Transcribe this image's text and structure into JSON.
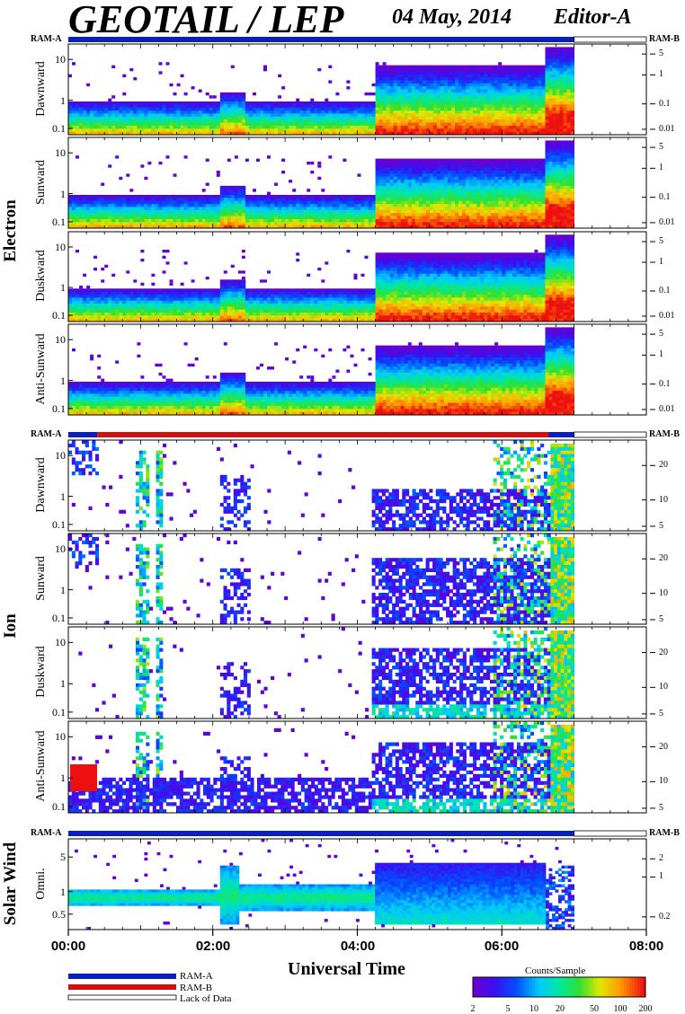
{
  "header": {
    "title": "GEOTAIL / LEP",
    "date": "04 May, 2014",
    "editor": "Editor-A"
  },
  "x_axis": {
    "label": "Universal Time",
    "ticks": [
      "00:00",
      "02:00",
      "04:00",
      "06:00",
      "08:00"
    ]
  },
  "legend": {
    "ram_a": "RAM-A",
    "ram_b": "RAM-B",
    "lack": "Lack of Data"
  },
  "colorbar": {
    "title": "Counts/Sample",
    "ticks": [
      "2",
      "5",
      "10",
      "20",
      "50",
      "100",
      "200"
    ]
  },
  "colors": {
    "ram_a": "#0a1fbf",
    "ram_b": "#d11111",
    "lack": "#ffffff"
  },
  "chart_data": {
    "type": "heatmap",
    "x_range_hours": [
      0,
      8
    ],
    "data_end_hour": 7.0,
    "color_scale": {
      "min": 2,
      "max": 200,
      "log": true
    },
    "groups": [
      {
        "name": "Electron",
        "ram_left": "RAM-A",
        "ram_right": "RAM-B",
        "ram_bar": [
          {
            "from": 0.0,
            "to": 7.0,
            "mode": "A"
          },
          {
            "from": 7.0,
            "to": 8.0,
            "mode": "none"
          }
        ],
        "left_ticks": [
          "10",
          "1",
          "0.1"
        ],
        "right_ticks": [
          "5",
          "1",
          "0.1",
          "0.01"
        ],
        "panels": [
          "Dawnward",
          "Sunward",
          "Duskward",
          "Anti-Sunward"
        ]
      },
      {
        "name": "Ion",
        "ram_left": "RAM-A",
        "ram_right": "RAM-B",
        "ram_bar": [
          {
            "from": 0.0,
            "to": 0.4,
            "mode": "A"
          },
          {
            "from": 0.4,
            "to": 6.65,
            "mode": "B"
          },
          {
            "from": 6.65,
            "to": 7.0,
            "mode": "A"
          },
          {
            "from": 7.0,
            "to": 8.0,
            "mode": "none"
          }
        ],
        "left_ticks": [
          "10",
          "1",
          "0.1"
        ],
        "right_ticks": [
          "20",
          "10",
          "5"
        ],
        "panels": [
          "Dawnward",
          "Sunward",
          "Duskward",
          "Anti-Sunward"
        ]
      },
      {
        "name": "Solar Wind",
        "ram_left": "RAM-A",
        "ram_right": "RAM-B",
        "ram_bar": [
          {
            "from": 0.0,
            "to": 7.0,
            "mode": "A"
          },
          {
            "from": 7.0,
            "to": 8.0,
            "mode": "none"
          }
        ],
        "left_ticks": [
          "5",
          "1",
          "0.5"
        ],
        "right_ticks": [
          "2",
          "1",
          "0.2"
        ],
        "panels": [
          "Omni."
        ]
      }
    ]
  }
}
